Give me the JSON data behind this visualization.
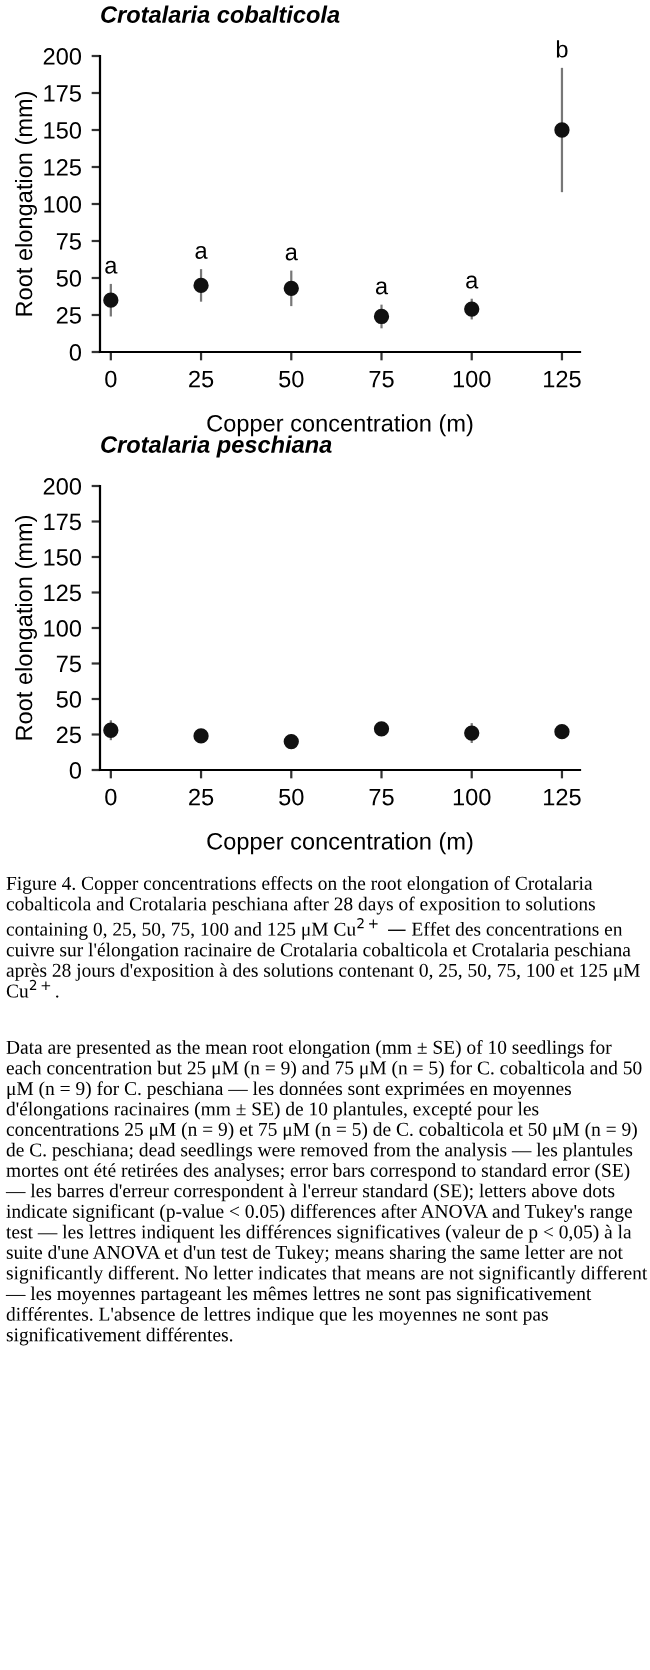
{
  "chart_data": [
    {
      "type": "scatter",
      "title": "Crotalaria cobalticola",
      "xlabel": "Copper concentration (m)",
      "ylabel": "Root elongation (mm)",
      "x": [
        0,
        25,
        50,
        75,
        100,
        125
      ],
      "values": [
        35,
        45,
        43,
        24,
        29,
        150
      ],
      "errors": [
        11,
        11,
        12,
        8,
        7,
        42
      ],
      "color": "#111111",
      "marker": "circle",
      "xlim": [
        -3,
        130
      ],
      "ylim": [
        0,
        200
      ],
      "xticks": [
        0,
        25,
        50,
        75,
        100,
        125
      ],
      "yticks": [
        0,
        25,
        50,
        75,
        100,
        125,
        150,
        175,
        200
      ],
      "grid": false,
      "annotations": [
        {
          "text": "a",
          "x": 0,
          "y": 46
        },
        {
          "text": "a",
          "x": 25,
          "y": 56
        },
        {
          "text": "a",
          "x": 50,
          "y": 55
        },
        {
          "text": "a",
          "x": 75,
          "y": 32
        },
        {
          "text": "a",
          "x": 100,
          "y": 36
        },
        {
          "text": "b",
          "x": 125,
          "y": 192
        }
      ]
    },
    {
      "type": "scatter",
      "title": "Crotalaria peschiana",
      "xlabel": "Copper concentration (m)",
      "ylabel": "Root elongation (mm)",
      "x": [
        0,
        25,
        50,
        75,
        100,
        125
      ],
      "values": [
        28,
        24,
        20,
        29,
        26,
        27
      ],
      "errors": [
        7,
        3,
        5,
        4,
        7,
        4
      ],
      "color": "#111111",
      "marker": "circle",
      "xlim": [
        -3,
        130
      ],
      "ylim": [
        0,
        200
      ],
      "xticks": [
        0,
        25,
        50,
        75,
        100,
        125
      ],
      "yticks": [
        0,
        25,
        50,
        75,
        100,
        125,
        150,
        175,
        200
      ],
      "grid": false,
      "annotations": [
        "Figure 4. Copper concentrations effects on the root elongation of Crotalaria cobalticola and Crotalaria peschiana after 28 days of exposition to solutions containing 0, 25, 50, 75, 100 and 125 μM Cu$^{2+}$ — Effet des concentrations en cuivre sur l'élongation racinaire de Crotalaria cobalticola et Crotalaria peschiana après 28 jours d'exposition à des solutions contenant 0, 25, 50, 75, 100 et 125 μM Cu$^{2+}$.",
        "Data are presented as the mean root elongation (mm ± SE) of 10 seedlings for each concentration but 25 μM (n = 9) and 75 μM (n = 5) for C. cobalticola and 50 μM (n = 9) for C. peschiana — les données sont exprimées en moyennes d'élongations racinaires (mm ± SE) de 10 plantules, excepté pour les concentrations 25 μM (n = 9) et 75 μM (n = 5) de C. cobalticola et 50 μM (n = 9) de C. peschiana; dead seedlings were removed from the analysis — les plantules mortes ont été retirées des analyses; error bars correspond to standard error (SE) — les barres d'erreur correspondent à l'erreur standard (SE); letters above dots indicate significant (p-value < 0.05) differences after ANOVA and Tukey's range test — les lettres indiquent les différences significatives (valeur de p < 0,05) à la suite d'une ANOVA et d'un test de Tukey; means sharing the same letter are not significantly different. No letter indicates that means are not significantly different — les moyennes partageant les mêmes lettres ne sont pas significativement différentes. L'absence de lettres indique que les moyennes ne sont pas significativement différentes."
      ]
    }
  ]
}
